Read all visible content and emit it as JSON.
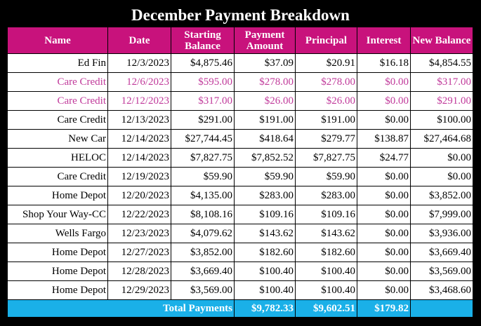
{
  "title": "December Payment Breakdown",
  "table": {
    "header": [
      "Name",
      "Date",
      "Starting Balance",
      "Payment Amount",
      "Principal",
      "Interest",
      "New Balance"
    ],
    "rows": [
      [
        "Ed Fin",
        "12/3/2023",
        "$4,875.46",
        "$37.09",
        "$20.91",
        "$16.18",
        "$4,854.55"
      ],
      [
        "Care Credit",
        "12/6/2023",
        "$595.00",
        "$278.00",
        "$278.00",
        "$0.00",
        "$317.00"
      ],
      [
        "Care Credit",
        "12/12/2023",
        "$317.00",
        "$26.00",
        "$26.00",
        "$0.00",
        "$291.00"
      ],
      [
        "Care Credit",
        "12/13/2023",
        "$291.00",
        "$191.00",
        "$191.00",
        "$0.00",
        "$100.00"
      ],
      [
        "New Car",
        "12/14/2023",
        "$27,744.45",
        "$418.64",
        "$279.77",
        "$138.87",
        "$27,464.68"
      ],
      [
        "HELOC",
        "12/14/2023",
        "$7,827.75",
        "$7,852.52",
        "$7,827.75",
        "$24.77",
        "$0.00"
      ],
      [
        "Care Credit",
        "12/19/2023",
        "$59.90",
        "$59.90",
        "$59.90",
        "$0.00",
        "$0.00"
      ],
      [
        "Home Depot",
        "12/20/2023",
        "$4,135.00",
        "$283.00",
        "$283.00",
        "$0.00",
        "$3,852.00"
      ],
      [
        "Shop Your Way-CC",
        "12/22/2023",
        "$8,108.16",
        "$109.16",
        "$109.16",
        "$0.00",
        "$7,999.00"
      ],
      [
        "Wells Fargo",
        "12/23/2023",
        "$4,079.62",
        "$143.62",
        "$143.62",
        "$0.00",
        "$3,936.00"
      ],
      [
        "Home Depot",
        "12/27/2023",
        "$3,852.00",
        "$182.60",
        "$182.60",
        "$0.00",
        "$3,669.40"
      ],
      [
        "Home Depot",
        "12/28/2023",
        "$3,669.40",
        "$100.40",
        "$100.40",
        "$0.00",
        "$3,569.00"
      ],
      [
        "Home Depot",
        "12/29/2023",
        "$3,569.00",
        "$100.40",
        "$100.40",
        "$0.00",
        "$3,468.60"
      ]
    ],
    "row_colors": [
      "#000000",
      "#c0399a",
      "#c0399a",
      "#000000",
      "#000000",
      "#000000",
      "#000000",
      "#000000",
      "#000000",
      "#000000",
      "#000000",
      "#000000",
      "#000000"
    ],
    "total": {
      "label": "Total Payments",
      "values": [
        "$9,782.33",
        "$9,602.51",
        "$179.82"
      ]
    }
  }
}
